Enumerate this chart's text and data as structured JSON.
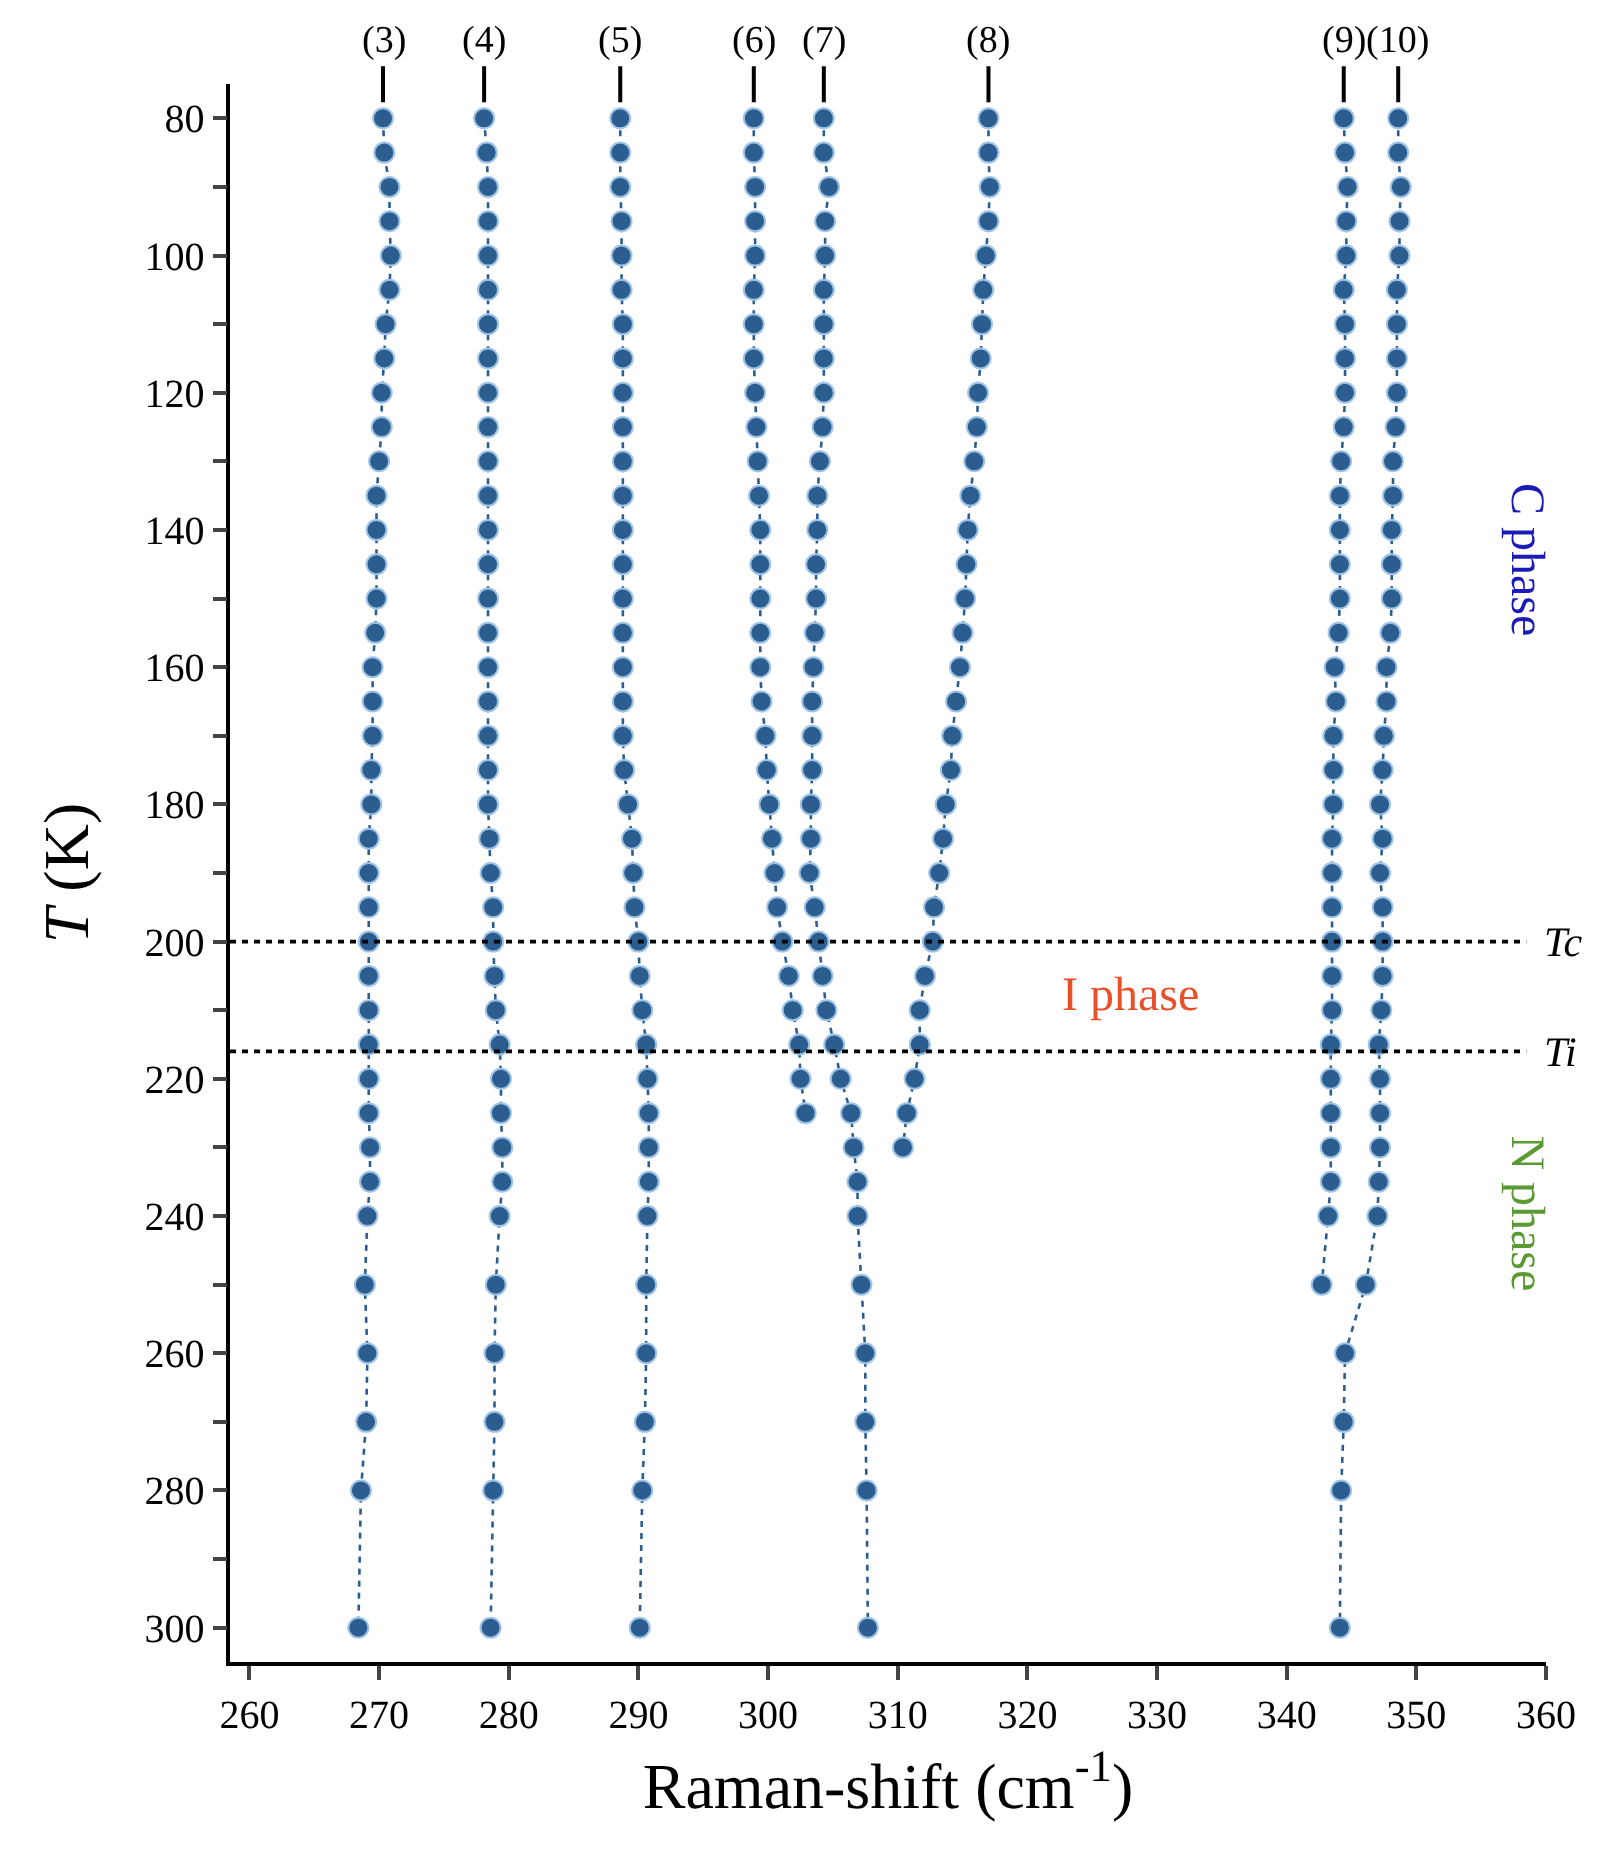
{
  "chart_data": {
    "type": "line",
    "xlabel": "Raman-shift (cm$^{-1}$)",
    "ylabel": "T (K)",
    "series": [
      {
        "name": "(3)",
        "color": "#2b5d8e",
        "x": [
          270.3,
          270.4,
          270.8,
          270.8,
          270.9,
          270.8,
          270.5,
          270.4,
          270.2,
          270.2,
          270.0,
          269.8,
          269.8,
          269.8,
          269.8,
          269.7,
          269.5,
          269.5,
          269.5,
          269.4,
          269.4,
          269.2,
          269.2,
          269.2,
          269.2,
          269.2,
          269.2,
          269.2,
          269.2,
          269.2,
          269.3,
          269.3,
          269.1,
          268.9,
          269.1,
          269.0,
          268.6,
          268.4
        ],
        "values": [
          80,
          85,
          90,
          95,
          100,
          105,
          110,
          115,
          120,
          125,
          130,
          135,
          140,
          145,
          150,
          155,
          160,
          165,
          170,
          175,
          180,
          185,
          190,
          195,
          200,
          205,
          210,
          215,
          220,
          225,
          230,
          235,
          240,
          250,
          260,
          270,
          280,
          300
        ]
      },
      {
        "name": "(4)",
        "color": "#2b5d8e",
        "x": [
          278.1,
          278.3,
          278.4,
          278.4,
          278.4,
          278.4,
          278.4,
          278.4,
          278.4,
          278.4,
          278.4,
          278.4,
          278.4,
          278.4,
          278.4,
          278.4,
          278.4,
          278.4,
          278.4,
          278.4,
          278.4,
          278.5,
          278.6,
          278.8,
          278.8,
          278.9,
          279.0,
          279.3,
          279.4,
          279.4,
          279.5,
          279.5,
          279.3,
          279.0,
          278.9,
          278.9,
          278.8,
          278.6
        ],
        "values": [
          80,
          85,
          90,
          95,
          100,
          105,
          110,
          115,
          120,
          125,
          130,
          135,
          140,
          145,
          150,
          155,
          160,
          165,
          170,
          175,
          180,
          185,
          190,
          195,
          200,
          205,
          210,
          215,
          220,
          225,
          230,
          235,
          240,
          250,
          260,
          270,
          280,
          300
        ]
      },
      {
        "name": "(5)",
        "color": "#2b5d8e",
        "x": [
          288.6,
          288.6,
          288.6,
          288.7,
          288.7,
          288.7,
          288.8,
          288.8,
          288.8,
          288.8,
          288.8,
          288.8,
          288.8,
          288.8,
          288.8,
          288.8,
          288.8,
          288.8,
          288.8,
          288.9,
          289.2,
          289.5,
          289.6,
          289.7,
          290.0,
          290.1,
          290.3,
          290.6,
          290.7,
          290.8,
          290.8,
          290.8,
          290.7,
          290.6,
          290.6,
          290.5,
          290.3,
          290.1
        ],
        "values": [
          80,
          85,
          90,
          95,
          100,
          105,
          110,
          115,
          120,
          125,
          130,
          135,
          140,
          145,
          150,
          155,
          160,
          165,
          170,
          175,
          180,
          185,
          190,
          195,
          200,
          205,
          210,
          215,
          220,
          225,
          230,
          235,
          240,
          250,
          260,
          270,
          280,
          300
        ]
      },
      {
        "name": "(6)",
        "color": "#2b5d8e",
        "x": [
          298.9,
          298.9,
          299.0,
          299.0,
          299.0,
          298.9,
          298.9,
          298.9,
          299.0,
          299.1,
          299.2,
          299.3,
          299.4,
          299.4,
          299.4,
          299.4,
          299.4,
          299.5,
          299.8,
          299.9,
          300.1,
          300.3,
          300.5,
          300.7,
          301.1,
          301.6,
          301.9,
          302.4,
          302.5,
          302.9
        ],
        "values": [
          80,
          85,
          90,
          95,
          100,
          105,
          110,
          115,
          120,
          125,
          130,
          135,
          140,
          145,
          150,
          155,
          160,
          165,
          170,
          175,
          180,
          185,
          190,
          195,
          200,
          205,
          210,
          215,
          220,
          225
        ]
      },
      {
        "name": "(7)",
        "color": "#2b5d8e",
        "x": [
          304.3,
          304.3,
          304.7,
          304.4,
          304.4,
          304.3,
          304.3,
          304.3,
          304.3,
          304.2,
          304.0,
          303.8,
          303.8,
          303.7,
          303.7,
          303.6,
          303.5,
          303.4,
          303.4,
          303.4,
          303.3,
          303.3,
          303.2,
          303.6,
          303.9,
          304.2,
          304.5,
          305.1,
          305.6,
          306.4,
          306.6,
          306.9,
          306.9,
          307.2,
          307.5,
          307.5,
          307.6,
          307.7
        ],
        "values": [
          80,
          85,
          90,
          95,
          100,
          105,
          110,
          115,
          120,
          125,
          130,
          135,
          140,
          145,
          150,
          155,
          160,
          165,
          170,
          175,
          180,
          185,
          190,
          195,
          200,
          205,
          210,
          215,
          220,
          225,
          230,
          235,
          240,
          250,
          260,
          270,
          280,
          300
        ]
      },
      {
        "name": "(8)",
        "color": "#2b5d8e",
        "x": [
          317.0,
          317.0,
          317.1,
          317.0,
          316.8,
          316.6,
          316.5,
          316.4,
          316.2,
          316.1,
          315.9,
          315.6,
          315.4,
          315.3,
          315.2,
          315.0,
          314.8,
          314.5,
          314.2,
          314.1,
          313.7,
          313.5,
          313.2,
          312.8,
          312.7,
          312.1,
          311.7,
          311.7,
          311.3,
          310.7,
          310.4
        ],
        "values": [
          80,
          85,
          90,
          95,
          100,
          105,
          110,
          115,
          120,
          125,
          130,
          135,
          140,
          145,
          150,
          155,
          160,
          165,
          170,
          175,
          180,
          185,
          190,
          195,
          200,
          205,
          210,
          215,
          220,
          225,
          230
        ]
      },
      {
        "name": "(9)",
        "color": "#2b5d8e",
        "x": [
          344.4,
          344.5,
          344.7,
          344.6,
          344.6,
          344.4,
          344.5,
          344.5,
          344.5,
          344.4,
          344.2,
          344.1,
          344.1,
          344.1,
          344.1,
          344.0,
          343.7,
          343.8,
          343.6,
          343.6,
          343.6,
          343.5,
          343.5,
          343.5,
          343.5,
          343.5,
          343.5,
          343.4,
          343.4,
          343.4,
          343.4,
          343.4,
          343.2,
          342.7
        ],
        "values": [
          80,
          85,
          90,
          95,
          100,
          105,
          110,
          115,
          120,
          125,
          130,
          135,
          140,
          145,
          150,
          155,
          160,
          165,
          170,
          175,
          180,
          185,
          190,
          195,
          200,
          205,
          210,
          215,
          220,
          225,
          230,
          235,
          240,
          250
        ]
      },
      {
        "name": "(10)",
        "color": "#2b5d8e",
        "x": [
          348.6,
          348.6,
          348.8,
          348.7,
          348.7,
          348.5,
          348.5,
          348.5,
          348.5,
          348.4,
          348.2,
          348.2,
          348.1,
          348.1,
          348.1,
          348.0,
          347.7,
          347.7,
          347.5,
          347.4,
          347.2,
          347.4,
          347.2,
          347.4,
          347.4,
          347.4,
          347.3,
          347.1,
          347.2,
          347.2,
          347.2,
          347.1,
          347.0,
          346.1,
          344.5,
          344.4,
          344.2,
          344.1
        ],
        "values": [
          80,
          85,
          90,
          95,
          100,
          105,
          110,
          115,
          120,
          125,
          130,
          135,
          140,
          145,
          150,
          155,
          160,
          165,
          170,
          175,
          180,
          185,
          190,
          195,
          200,
          205,
          210,
          215,
          220,
          225,
          230,
          235,
          240,
          250,
          260,
          270,
          280,
          300
        ]
      }
    ],
    "xlim": [
      258.5,
      360
    ],
    "xticks": [
      260,
      270,
      280,
      290,
      300,
      310,
      320,
      330,
      340,
      350,
      360
    ],
    "ylim": [
      305,
      75
    ],
    "yticks": [
      80,
      {
        "value": 90,
        "label": null
      },
      100,
      {
        "value": 110,
        "label": null
      },
      120,
      {
        "value": 130,
        "label": null
      },
      140,
      {
        "value": 150,
        "label": null
      },
      160,
      {
        "value": 170,
        "label": null
      },
      180,
      {
        "value": 190,
        "label": null
      },
      200,
      {
        "value": 210,
        "label": null
      },
      220,
      {
        "value": 230,
        "label": null
      },
      240,
      {
        "value": 250,
        "label": null
      },
      260,
      {
        "value": 270,
        "label": null
      },
      280,
      {
        "value": 290,
        "label": null
      },
      300
    ],
    "ref_lines": [
      {
        "axis": "y",
        "value": 200,
        "label": "Tc",
        "color": "#000000",
        "line_style": "dotted"
      },
      {
        "axis": "y",
        "value": 216,
        "label": "Ti",
        "color": "#000000",
        "line_style": "dotted"
      }
    ],
    "annotations": [
      "C phase",
      "I phase",
      "N phase"
    ],
    "marker": "circle",
    "line_style": "dotted"
  }
}
